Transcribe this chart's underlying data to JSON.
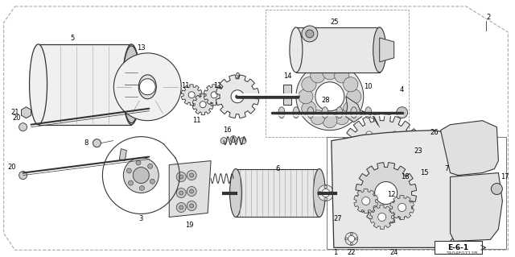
{
  "bg_color": "#ffffff",
  "line_color": "#333333",
  "fill_light": "#f0f0f0",
  "fill_mid": "#d8d8d8",
  "fill_dark": "#aaaaaa",
  "diagram_code": "TA04E0712B",
  "section_code": "E-6-1",
  "fig_w": 6.4,
  "fig_h": 3.19,
  "dpi": 100
}
